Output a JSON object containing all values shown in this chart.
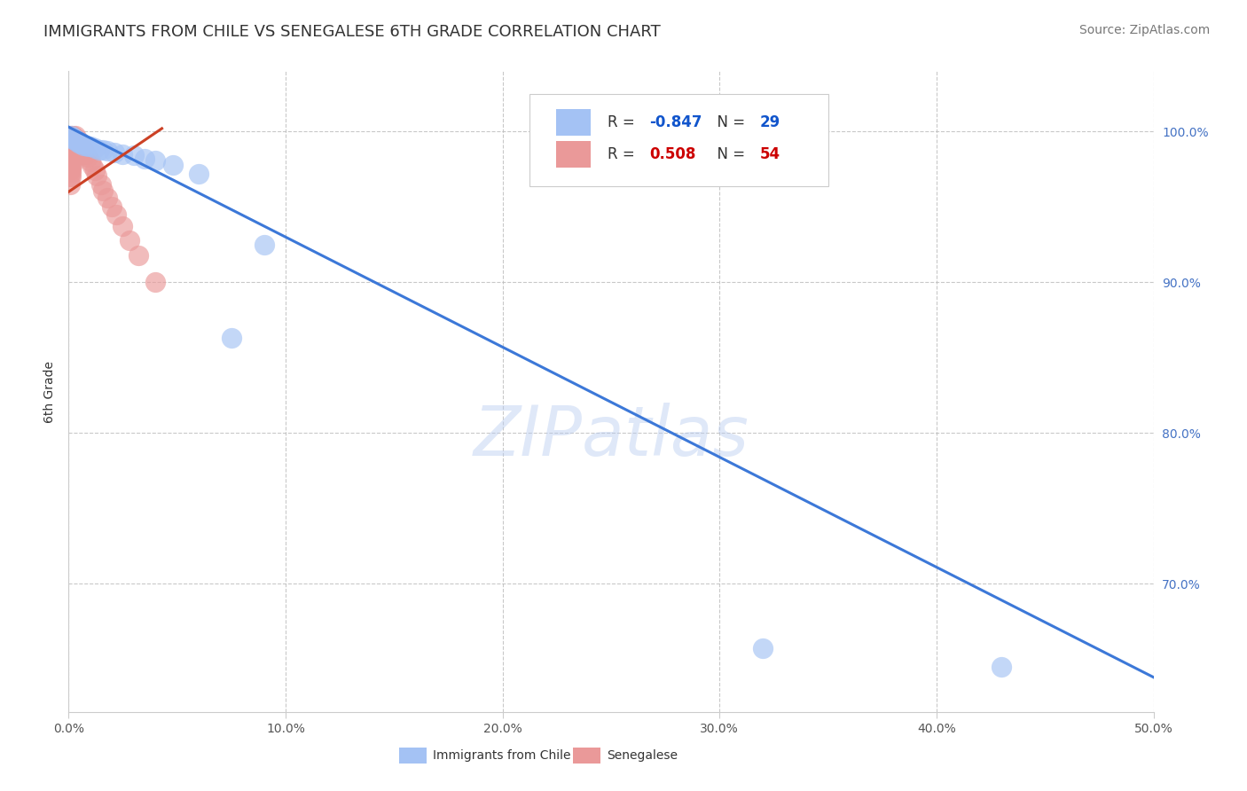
{
  "title": "IMMIGRANTS FROM CHILE VS SENEGALESE 6TH GRADE CORRELATION CHART",
  "source": "Source: ZipAtlas.com",
  "ylabel": "6th Grade",
  "watermark": "ZIPatlas",
  "xlim": [
    0.0,
    0.5
  ],
  "ylim": [
    0.615,
    1.04
  ],
  "xticks": [
    0.0,
    0.1,
    0.2,
    0.3,
    0.4,
    0.5
  ],
  "xticklabels": [
    "0.0%",
    "10.0%",
    "20.0%",
    "30.0%",
    "40.0%",
    "50.0%"
  ],
  "yticks": [
    0.7,
    0.8,
    0.9,
    1.0
  ],
  "yticklabels": [
    "70.0%",
    "80.0%",
    "90.0%",
    "100.0%"
  ],
  "legend_blue_r": "-0.847",
  "legend_blue_n": "29",
  "legend_pink_r": "0.508",
  "legend_pink_n": "54",
  "legend_blue_label": "Immigrants from Chile",
  "legend_pink_label": "Senegalese",
  "blue_color": "#a4c2f4",
  "pink_color": "#ea9999",
  "line_blue_color": "#3c78d8",
  "line_pink_color": "#cc4125",
  "blue_x": [
    0.001,
    0.001,
    0.002,
    0.002,
    0.003,
    0.003,
    0.004,
    0.005,
    0.005,
    0.006,
    0.007,
    0.008,
    0.009,
    0.01,
    0.012,
    0.014,
    0.016,
    0.018,
    0.021,
    0.025,
    0.03,
    0.035,
    0.04,
    0.048,
    0.06,
    0.075,
    0.09,
    0.32,
    0.43
  ],
  "blue_y": [
    0.997,
    0.996,
    0.996,
    0.995,
    0.995,
    0.994,
    0.993,
    0.993,
    0.992,
    0.992,
    0.991,
    0.991,
    0.99,
    0.99,
    0.989,
    0.988,
    0.988,
    0.987,
    0.986,
    0.985,
    0.984,
    0.982,
    0.981,
    0.978,
    0.972,
    0.863,
    0.925,
    0.657,
    0.645
  ],
  "pink_x": [
    0.0005,
    0.0005,
    0.0005,
    0.001,
    0.001,
    0.001,
    0.001,
    0.001,
    0.001,
    0.001,
    0.001,
    0.001,
    0.001,
    0.001,
    0.001,
    0.002,
    0.002,
    0.002,
    0.002,
    0.002,
    0.002,
    0.002,
    0.002,
    0.003,
    0.003,
    0.003,
    0.003,
    0.003,
    0.004,
    0.004,
    0.004,
    0.004,
    0.005,
    0.005,
    0.005,
    0.006,
    0.006,
    0.007,
    0.007,
    0.008,
    0.009,
    0.01,
    0.011,
    0.012,
    0.013,
    0.015,
    0.016,
    0.018,
    0.02,
    0.022,
    0.025,
    0.028,
    0.032,
    0.04
  ],
  "pink_y": [
    0.975,
    0.97,
    0.965,
    0.997,
    0.995,
    0.993,
    0.99,
    0.988,
    0.985,
    0.983,
    0.98,
    0.978,
    0.975,
    0.973,
    0.97,
    0.997,
    0.995,
    0.993,
    0.99,
    0.988,
    0.985,
    0.982,
    0.979,
    0.997,
    0.995,
    0.992,
    0.989,
    0.986,
    0.995,
    0.992,
    0.989,
    0.986,
    0.993,
    0.99,
    0.987,
    0.99,
    0.987,
    0.988,
    0.985,
    0.985,
    0.983,
    0.98,
    0.977,
    0.974,
    0.971,
    0.965,
    0.961,
    0.956,
    0.95,
    0.945,
    0.937,
    0.928,
    0.918,
    0.9
  ],
  "blue_line_x0": 0.0,
  "blue_line_y0": 1.003,
  "blue_line_x1": 0.5,
  "blue_line_y1": 0.638,
  "pink_line_x0": 0.0,
  "pink_line_y0": 0.96,
  "pink_line_x1": 0.043,
  "pink_line_y1": 1.002,
  "title_fontsize": 13,
  "axis_label_fontsize": 10,
  "tick_fontsize": 10,
  "source_fontsize": 10
}
